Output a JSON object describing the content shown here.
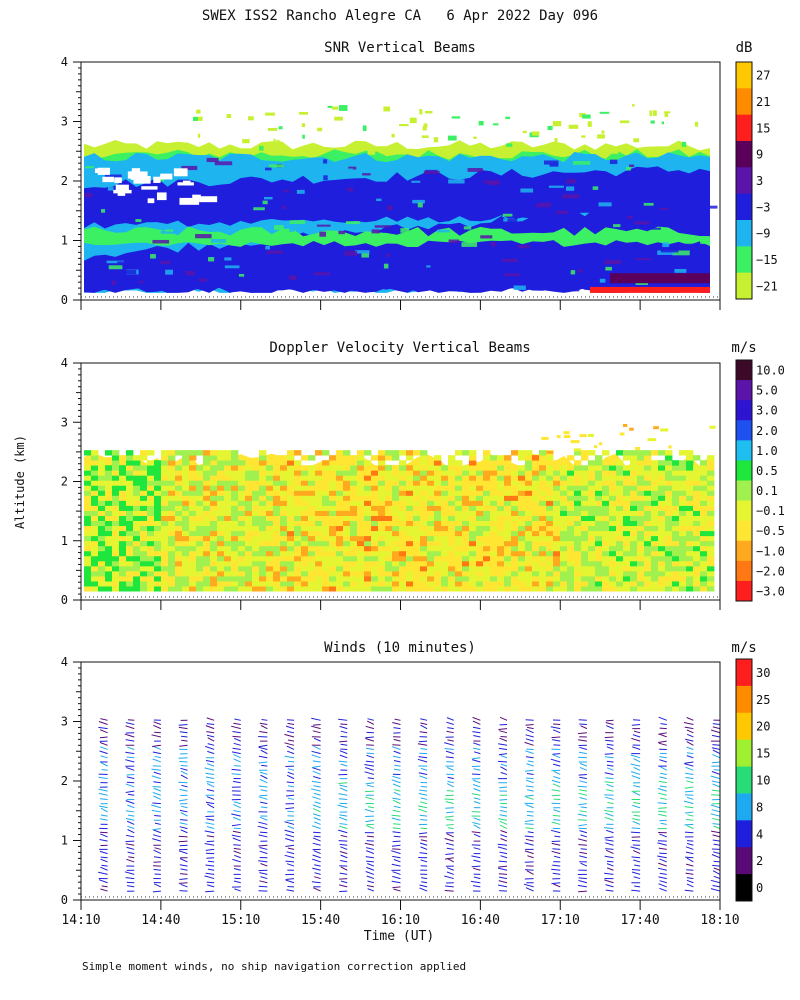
{
  "figure_title": "SWEX ISS2 Rancho Alegre CA   6 Apr 2022 Day 096",
  "footnote": "Simple moment winds, no ship navigation correction applied",
  "chart_data": [
    {
      "type": "heatmap",
      "title": "SNR Vertical Beams",
      "xlabel": "",
      "ylabel": "",
      "colorbar_unit": "dB",
      "colorbar_labels": [
        "27",
        "21",
        "15",
        "9",
        "3",
        "−3",
        "−9",
        "−15",
        "−21"
      ],
      "colorbar_colors": [
        "#ffc800",
        "#ff8c00",
        "#ff1e1e",
        "#5a005a",
        "#5a14aa",
        "#1e1edc",
        "#1eb4f0",
        "#3cf064",
        "#c8f032"
      ],
      "ylim": [
        0,
        4
      ],
      "yticks": [
        "0",
        "1",
        "2",
        "3",
        "4"
      ],
      "xlim_hours": [
        14.1667,
        18.1667
      ],
      "x_tick_labels": [],
      "bands": [
        {
          "color": "#c8f032",
          "bottom_km": 2.0,
          "top_km": 2.6
        },
        {
          "color": "#3cf064",
          "bottom_km": 1.9,
          "top_km": 2.45
        },
        {
          "color": "#1eb4f0",
          "bottom_km": 0.15,
          "top_km": 2.4
        },
        {
          "color": "#1e1edc",
          "bottom_km": 1.25,
          "top_km": 1.95
        },
        {
          "color": "#1e1edc",
          "bottom_km": 0.15,
          "top_km": 0.75
        },
        {
          "color": "#3cf064",
          "bottom_km": 0.95,
          "top_km": 1.15
        },
        {
          "color": "#1e1edc",
          "bottom_km": 0.15,
          "top_km": 0.35
        }
      ]
    },
    {
      "type": "heatmap",
      "title": "Doppler Velocity Vertical Beams",
      "xlabel": "",
      "ylabel": "Altitude (km)",
      "colorbar_unit": "m/s",
      "colorbar_labels": [
        "10.0",
        "5.0",
        "3.0",
        "2.0",
        "1.0",
        "0.5",
        "0.1",
        "−0.1",
        "−0.5",
        "−1.0",
        "−2.0",
        "−3.0"
      ],
      "colorbar_colors": [
        "#3c0a28",
        "#5a14aa",
        "#2d14d2",
        "#1e50f0",
        "#1ebef0",
        "#1ee63c",
        "#a0f050",
        "#e6f532",
        "#ffe632",
        "#ffaa1e",
        "#ff7814",
        "#ff1e1e"
      ],
      "ylim": [
        0,
        4
      ],
      "yticks": [
        "0",
        "1",
        "2",
        "3",
        "4"
      ],
      "xlim_hours": [
        14.1667,
        18.1667
      ],
      "x_tick_labels": []
    },
    {
      "type": "scatter",
      "title": "Winds (10 minutes)",
      "xlabel": "Time (UT)",
      "ylabel": "",
      "colorbar_unit": "m/s",
      "colorbar_labels": [
        "30",
        "25",
        "20",
        "15",
        "10",
        "8",
        "4",
        "2",
        "0"
      ],
      "colorbar_colors": [
        "#ff1e1e",
        "#ff8c00",
        "#ffc800",
        "#a0f032",
        "#28dc78",
        "#1eaaf0",
        "#1e1edc",
        "#5a0a78",
        "#000000"
      ],
      "ylim": [
        0,
        4
      ],
      "yticks": [
        "0",
        "1",
        "2",
        "3",
        "4"
      ],
      "xlim_hours": [
        14.1667,
        18.1667
      ],
      "x_tick_labels": [
        "14:10",
        "14:40",
        "15:10",
        "15:40",
        "16:10",
        "16:40",
        "17:10",
        "17:40",
        "18:10"
      ],
      "profile_interval_minutes": 10,
      "profile_top_km": 3.0
    }
  ]
}
